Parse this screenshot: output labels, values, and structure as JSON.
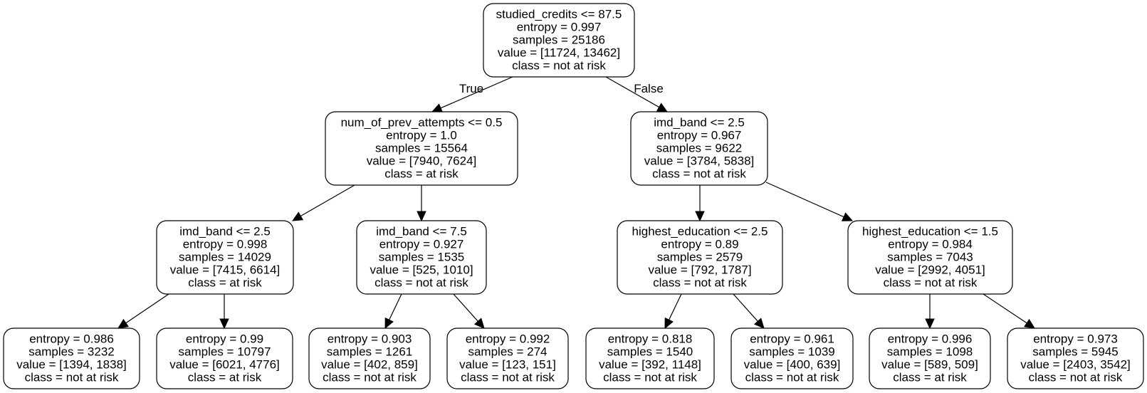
{
  "tree": {
    "edge_labels": {
      "true_label": "True",
      "false_label": "False"
    },
    "nodes": [
      {
        "id": "n0",
        "lines": [
          "studied_credits <= 87.5",
          "entropy = 0.997",
          "samples = 25186",
          "value = [11724, 13462]",
          "class = not at risk"
        ]
      },
      {
        "id": "n1",
        "lines": [
          "num_of_prev_attempts <= 0.5",
          "entropy = 1.0",
          "samples = 15564",
          "value = [7940, 7624]",
          "class = at risk"
        ]
      },
      {
        "id": "n2",
        "lines": [
          "imd_band <= 2.5",
          "entropy = 0.967",
          "samples = 9622",
          "value = [3784, 5838]",
          "class = not at risk"
        ]
      },
      {
        "id": "n3",
        "lines": [
          "imd_band <= 2.5",
          "entropy = 0.998",
          "samples = 14029",
          "value = [7415, 6614]",
          "class = at risk"
        ]
      },
      {
        "id": "n4",
        "lines": [
          "imd_band <= 7.5",
          "entropy = 0.927",
          "samples = 1535",
          "value = [525, 1010]",
          "class = not at risk"
        ]
      },
      {
        "id": "n5",
        "lines": [
          "highest_education <= 2.5",
          "entropy = 0.89",
          "samples = 2579",
          "value = [792, 1787]",
          "class = not at risk"
        ]
      },
      {
        "id": "n6",
        "lines": [
          "highest_education <= 1.5",
          "entropy = 0.984",
          "samples = 7043",
          "value = [2992, 4051]",
          "class = not at risk"
        ]
      },
      {
        "id": "n7",
        "lines": [
          "entropy = 0.986",
          "samples = 3232",
          "value = [1394, 1838]",
          "class = not at risk"
        ]
      },
      {
        "id": "n8",
        "lines": [
          "entropy = 0.99",
          "samples = 10797",
          "value = [6021, 4776]",
          "class = at risk"
        ]
      },
      {
        "id": "n9",
        "lines": [
          "entropy = 0.903",
          "samples = 1261",
          "value = [402, 859]",
          "class = not at risk"
        ]
      },
      {
        "id": "n10",
        "lines": [
          "entropy = 0.992",
          "samples = 274",
          "value = [123, 151]",
          "class = not at risk"
        ]
      },
      {
        "id": "n11",
        "lines": [
          "entropy = 0.818",
          "samples = 1540",
          "value = [392, 1148]",
          "class = not at risk"
        ]
      },
      {
        "id": "n12",
        "lines": [
          "entropy = 0.961",
          "samples = 1039",
          "value = [400, 639]",
          "class = not at risk"
        ]
      },
      {
        "id": "n13",
        "lines": [
          "entropy = 0.996",
          "samples = 1098",
          "value = [589, 509]",
          "class = at risk"
        ]
      },
      {
        "id": "n14",
        "lines": [
          "entropy = 0.973",
          "samples = 5945",
          "value = [2403, 3542]",
          "class = not at risk"
        ]
      }
    ],
    "edges": [
      {
        "from": "n0",
        "to": "n1"
      },
      {
        "from": "n0",
        "to": "n2"
      },
      {
        "from": "n1",
        "to": "n3"
      },
      {
        "from": "n1",
        "to": "n4"
      },
      {
        "from": "n2",
        "to": "n5"
      },
      {
        "from": "n2",
        "to": "n6"
      },
      {
        "from": "n3",
        "to": "n7"
      },
      {
        "from": "n3",
        "to": "n8"
      },
      {
        "from": "n4",
        "to": "n9"
      },
      {
        "from": "n4",
        "to": "n10"
      },
      {
        "from": "n5",
        "to": "n11"
      },
      {
        "from": "n5",
        "to": "n12"
      },
      {
        "from": "n6",
        "to": "n13"
      },
      {
        "from": "n6",
        "to": "n14"
      }
    ]
  }
}
